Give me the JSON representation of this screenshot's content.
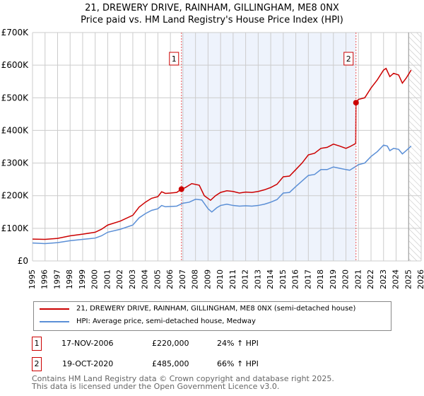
{
  "title": "21, DREWERY DRIVE, RAINHAM, GILLINGHAM, ME8 0NX",
  "subtitle": "Price paid vs. HM Land Registry's House Price Index (HPI)",
  "chart_data": {
    "type": "line",
    "ylim": [
      0,
      700000
    ],
    "xlim": [
      1995,
      2026
    ],
    "yticks": [
      {
        "v": 0,
        "l": "£0"
      },
      {
        "v": 100000,
        "l": "£100K"
      },
      {
        "v": 200000,
        "l": "£200K"
      },
      {
        "v": 300000,
        "l": "£300K"
      },
      {
        "v": 400000,
        "l": "£400K"
      },
      {
        "v": 500000,
        "l": "£500K"
      },
      {
        "v": 600000,
        "l": "£600K"
      },
      {
        "v": 700000,
        "l": "£700K"
      }
    ],
    "xticks": [
      "1995",
      "1996",
      "1997",
      "1998",
      "1999",
      "2000",
      "2001",
      "2002",
      "2003",
      "2004",
      "2005",
      "2006",
      "2007",
      "2008",
      "2009",
      "2010",
      "2011",
      "2012",
      "2013",
      "2014",
      "2015",
      "2016",
      "2017",
      "2018",
      "2019",
      "2020",
      "2021",
      "2022",
      "2023",
      "2024",
      "2025",
      "2026"
    ],
    "shaded_range": [
      2006.88,
      2020.8
    ],
    "hatched_from": 2025.0,
    "series": [
      {
        "name": "21, DREWERY DRIVE, RAINHAM, GILLINGHAM, ME8 0NX (semi-detached house)",
        "color": "#cc0000",
        "points": [
          [
            1995,
            67
          ],
          [
            1996,
            66
          ],
          [
            1997,
            69
          ],
          [
            1998,
            77
          ],
          [
            1999,
            82
          ],
          [
            2000,
            88
          ],
          [
            2000.5,
            97
          ],
          [
            2001,
            110
          ],
          [
            2002,
            122
          ],
          [
            2003,
            140
          ],
          [
            2003.5,
            165
          ],
          [
            2004,
            180
          ],
          [
            2004.5,
            192
          ],
          [
            2005,
            197
          ],
          [
            2005.3,
            212
          ],
          [
            2005.6,
            207
          ],
          [
            2006,
            208
          ],
          [
            2006.5,
            210
          ],
          [
            2006.88,
            220
          ],
          [
            2007.2,
            225
          ],
          [
            2007.7,
            237
          ],
          [
            2008.3,
            232
          ],
          [
            2008.7,
            200
          ],
          [
            2009.2,
            186
          ],
          [
            2009.6,
            200
          ],
          [
            2010,
            210
          ],
          [
            2010.5,
            215
          ],
          [
            2011,
            213
          ],
          [
            2011.5,
            208
          ],
          [
            2012,
            211
          ],
          [
            2012.5,
            210
          ],
          [
            2013,
            213
          ],
          [
            2013.5,
            218
          ],
          [
            2014,
            225
          ],
          [
            2014.5,
            235
          ],
          [
            2015,
            258
          ],
          [
            2015.5,
            260
          ],
          [
            2016,
            280
          ],
          [
            2016.5,
            300
          ],
          [
            2017,
            325
          ],
          [
            2017.5,
            330
          ],
          [
            2018,
            345
          ],
          [
            2018.5,
            348
          ],
          [
            2019,
            358
          ],
          [
            2019.5,
            352
          ],
          [
            2020,
            345
          ],
          [
            2020.3,
            350
          ],
          [
            2020.78,
            360
          ],
          [
            2020.8,
            485
          ],
          [
            2021,
            495
          ],
          [
            2021.5,
            500
          ],
          [
            2022,
            530
          ],
          [
            2022.5,
            555
          ],
          [
            2023,
            585
          ],
          [
            2023.2,
            590
          ],
          [
            2023.5,
            565
          ],
          [
            2023.8,
            575
          ],
          [
            2024.2,
            570
          ],
          [
            2024.5,
            545
          ],
          [
            2024.8,
            560
          ],
          [
            2025.2,
            585
          ]
        ]
      },
      {
        "name": "HPI: Average price, semi-detached house, Medway",
        "color": "#5b8fd6",
        "points": [
          [
            1995,
            55
          ],
          [
            1996,
            53
          ],
          [
            1997,
            56
          ],
          [
            1998,
            62
          ],
          [
            1999,
            66
          ],
          [
            2000,
            70
          ],
          [
            2000.5,
            77
          ],
          [
            2001,
            88
          ],
          [
            2002,
            97
          ],
          [
            2003,
            110
          ],
          [
            2003.5,
            132
          ],
          [
            2004,
            145
          ],
          [
            2004.5,
            155
          ],
          [
            2005,
            160
          ],
          [
            2005.3,
            170
          ],
          [
            2005.6,
            166
          ],
          [
            2006,
            167
          ],
          [
            2006.5,
            168
          ],
          [
            2007,
            177
          ],
          [
            2007.5,
            180
          ],
          [
            2008,
            189
          ],
          [
            2008.5,
            187
          ],
          [
            2009,
            160
          ],
          [
            2009.3,
            150
          ],
          [
            2009.7,
            163
          ],
          [
            2010,
            170
          ],
          [
            2010.5,
            174
          ],
          [
            2011,
            170
          ],
          [
            2011.5,
            168
          ],
          [
            2012,
            169
          ],
          [
            2012.5,
            168
          ],
          [
            2013,
            170
          ],
          [
            2013.5,
            174
          ],
          [
            2014,
            180
          ],
          [
            2014.5,
            188
          ],
          [
            2015,
            208
          ],
          [
            2015.5,
            210
          ],
          [
            2016,
            228
          ],
          [
            2016.5,
            245
          ],
          [
            2017,
            262
          ],
          [
            2017.5,
            265
          ],
          [
            2018,
            280
          ],
          [
            2018.5,
            280
          ],
          [
            2019,
            288
          ],
          [
            2019.5,
            284
          ],
          [
            2020,
            280
          ],
          [
            2020.3,
            278
          ],
          [
            2020.8,
            290
          ],
          [
            2021,
            295
          ],
          [
            2021.5,
            300
          ],
          [
            2022,
            320
          ],
          [
            2022.5,
            335
          ],
          [
            2023,
            355
          ],
          [
            2023.3,
            352
          ],
          [
            2023.5,
            338
          ],
          [
            2023.8,
            345
          ],
          [
            2024.2,
            342
          ],
          [
            2024.5,
            328
          ],
          [
            2024.8,
            338
          ],
          [
            2025.2,
            352
          ]
        ]
      }
    ],
    "annotations": [
      {
        "label": "1",
        "x": 2006.88,
        "y": 220000
      },
      {
        "label": "2",
        "x": 2020.8,
        "y": 485000
      }
    ]
  },
  "legend": {
    "red": "21, DREWERY DRIVE, RAINHAM, GILLINGHAM, ME8 0NX (semi-detached house)",
    "blue": "HPI: Average price, semi-detached house, Medway"
  },
  "sales": [
    {
      "num": "1",
      "date": "17-NOV-2006",
      "price": "£220,000",
      "hpi": "24% ↑ HPI"
    },
    {
      "num": "2",
      "date": "19-OCT-2020",
      "price": "£485,000",
      "hpi": "66% ↑ HPI"
    }
  ],
  "footer": {
    "line1": "Contains HM Land Registry data © Crown copyright and database right 2025.",
    "line2": "This data is licensed under the Open Government Licence v3.0."
  }
}
